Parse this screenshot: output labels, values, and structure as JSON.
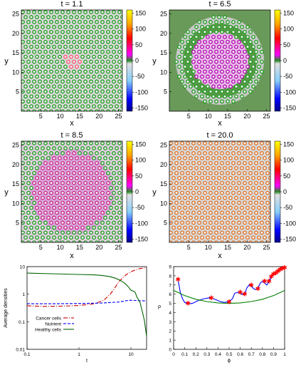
{
  "palette": {
    "colorbar_stops": [
      "#00008b",
      "#0000ff",
      "#87cefa",
      "#e0e0e0",
      "#228b22",
      "#ff00ff",
      "#ff0000",
      "#ffa500",
      "#ffff00"
    ],
    "cancer": "#cc0000",
    "nutrient": "#0000ff",
    "healthy": "#006400",
    "curve_blue": "#0000ff",
    "curve_green": "#008000",
    "marker": "#ff0000"
  },
  "chart_data": [
    {
      "type": "heatmap",
      "title": "t = 1.1",
      "xlabel": "x",
      "ylabel": "y",
      "xticks": [
        "5",
        "10",
        "15",
        "20",
        "25"
      ],
      "yticks": [
        "5",
        "10",
        "15",
        "20",
        "25"
      ],
      "xlim": [
        0,
        26
      ],
      "ylim": [
        0,
        26
      ],
      "colorbar": {
        "ticks": [
          "150",
          "100",
          "50",
          "0",
          "-50",
          "-100",
          "-150"
        ],
        "range": [
          -160,
          160
        ]
      },
      "background": "#d8d8d8",
      "dot_color": "#1a9a1a",
      "dot_center": "#f0f0f0",
      "center_dots": "#ff4d6d",
      "pattern": "rings"
    },
    {
      "type": "heatmap",
      "title": "t = 6.5",
      "xlabel": "x",
      "ylabel": "y",
      "xticks": [
        "5",
        "10",
        "15",
        "20",
        "25"
      ],
      "yticks": [
        "5",
        "10",
        "15",
        "20",
        "25"
      ],
      "xlim": [
        0,
        26
      ],
      "ylim": [
        0,
        26
      ],
      "colorbar": {
        "ticks": [
          "150",
          "100",
          "50",
          "0",
          "-50",
          "-100",
          "-150"
        ],
        "range": [
          -160,
          160
        ]
      },
      "background": "#6a9a5a",
      "dot_color": "#1a9a1a",
      "dot_center": "#f0f0f0",
      "center_dots": "#b000b0",
      "pattern": "disk"
    },
    {
      "type": "heatmap",
      "title": "t = 8.5",
      "xlabel": "x",
      "ylabel": "y",
      "xticks": [
        "5",
        "10",
        "15",
        "20",
        "25"
      ],
      "yticks": [
        "5",
        "10",
        "15",
        "20",
        "25"
      ],
      "xlim": [
        0,
        26
      ],
      "ylim": [
        0,
        26
      ],
      "colorbar": {
        "ticks": [
          "150",
          "100",
          "50",
          "0",
          "-50",
          "-100",
          "-150"
        ],
        "range": [
          -160,
          160
        ]
      },
      "background": "#e0d0e0",
      "dot_color": "#1a9a1a",
      "dot_center": "#f0f0f0",
      "center_dots": "#cc2288",
      "pattern": "spread"
    },
    {
      "type": "heatmap",
      "title": "t = 20.0",
      "xlabel": "x",
      "ylabel": "y",
      "xticks": [
        "5",
        "10",
        "15",
        "20",
        "25"
      ],
      "yticks": [
        "5",
        "10",
        "15",
        "20",
        "25"
      ],
      "xlim": [
        0,
        26
      ],
      "ylim": [
        0,
        26
      ],
      "colorbar": {
        "ticks": [
          "150",
          "100",
          "50",
          "0",
          "-50",
          "-100",
          "-150"
        ],
        "range": [
          -160,
          160
        ]
      },
      "background": "#d8d8d8",
      "dot_color": "#e07020",
      "dot_center": "#f4f4f4",
      "center_dots": "#e07020",
      "pattern": "uniform"
    },
    {
      "type": "line",
      "title": "",
      "xlabel": "t",
      "ylabel": "Average densities",
      "xscale": "log",
      "yscale": "log",
      "xlim": [
        0.1,
        20
      ],
      "ylim": [
        0.01,
        10
      ],
      "xticks": [
        {
          "v": 0.1,
          "label": "0.1"
        },
        {
          "v": 1,
          "label": "1"
        },
        {
          "v": 10,
          "label": "10"
        }
      ],
      "yticks": [
        {
          "v": 0.01,
          "label": "0.01"
        },
        {
          "v": 0.1,
          "label": "0.1"
        },
        {
          "v": 1,
          "label": "1"
        },
        {
          "v": 10,
          "label": "10"
        }
      ],
      "legend": "center-left",
      "series": [
        {
          "name": "Cancer cells",
          "style": "dashdot",
          "color": "#cc0000",
          "x": [
            0.1,
            0.2,
            0.5,
            1,
            2,
            3,
            4,
            5,
            6,
            8,
            10,
            12,
            15,
            20
          ],
          "y": [
            0.38,
            0.36,
            0.37,
            0.39,
            0.45,
            0.6,
            1.0,
            1.8,
            3.0,
            5.0,
            6.5,
            7.5,
            8.5,
            9.2
          ]
        },
        {
          "name": "Nutrient",
          "style": "dashed",
          "color": "#0000ff",
          "x": [
            0.1,
            0.3,
            1,
            2,
            3,
            4,
            5,
            6,
            7,
            8,
            10,
            12,
            15,
            20
          ],
          "y": [
            0.45,
            0.45,
            0.46,
            0.47,
            0.48,
            0.5,
            0.51,
            0.52,
            0.55,
            0.58,
            0.6,
            0.59,
            0.58,
            0.57
          ]
        },
        {
          "name": "Healthy cells",
          "style": "solid",
          "color": "#006400",
          "x": [
            0.1,
            0.3,
            1,
            2,
            3,
            4,
            5,
            6,
            7,
            8,
            9,
            10,
            11,
            12,
            13,
            15,
            18,
            20
          ],
          "y": [
            5.8,
            5.5,
            5.2,
            5.0,
            4.7,
            4.3,
            3.8,
            3.3,
            2.8,
            2.3,
            1.8,
            1.4,
            1.3,
            1.2,
            0.8,
            0.5,
            0.12,
            0.03
          ]
        }
      ]
    },
    {
      "type": "line",
      "title": "",
      "xlabel": "ϕ",
      "ylabel": "ρ",
      "xlim": [
        0,
        1
      ],
      "ylim": [
        0,
        9
      ],
      "xticks": [
        {
          "v": 0,
          "label": "0"
        },
        {
          "v": 0.1,
          "label": "0.1"
        },
        {
          "v": 0.2,
          "label": "0.2"
        },
        {
          "v": 0.3,
          "label": "0.3"
        },
        {
          "v": 0.4,
          "label": "0.4"
        },
        {
          "v": 0.5,
          "label": "0.5"
        },
        {
          "v": 0.6,
          "label": "0.6"
        },
        {
          "v": 0.7,
          "label": "0.7"
        },
        {
          "v": 0.8,
          "label": "0.8"
        },
        {
          "v": 0.9,
          "label": "0.9"
        },
        {
          "v": 1,
          "label": "1"
        }
      ],
      "yticks": [
        {
          "v": 0,
          "label": "0"
        },
        {
          "v": 1,
          "label": "1"
        },
        {
          "v": 2,
          "label": "2"
        },
        {
          "v": 3,
          "label": "3"
        },
        {
          "v": 4,
          "label": "4"
        },
        {
          "v": 5,
          "label": "5"
        },
        {
          "v": 6,
          "label": "6"
        },
        {
          "v": 7,
          "label": "7"
        },
        {
          "v": 8,
          "label": "8"
        },
        {
          "v": 9,
          "label": "9"
        }
      ],
      "series": [
        {
          "style": "solid",
          "color": "#0000ff",
          "x": [
            0.04,
            0.06,
            0.08,
            0.1,
            0.13,
            0.17,
            0.22,
            0.27,
            0.32,
            0.35,
            0.38,
            0.42,
            0.46,
            0.5,
            0.53,
            0.55,
            0.58,
            0.61,
            0.64,
            0.66,
            0.68,
            0.7,
            0.72,
            0.74,
            0.76,
            0.78,
            0.8,
            0.82,
            0.84,
            0.86,
            0.88,
            0.9,
            0.92,
            0.94,
            0.96,
            0.98,
            1.0
          ],
          "y": [
            7.6,
            6.2,
            5.5,
            5.1,
            4.95,
            5.0,
            5.3,
            5.5,
            5.6,
            5.55,
            5.4,
            5.2,
            5.1,
            5.2,
            5.5,
            6.1,
            6.2,
            6.0,
            6.0,
            6.7,
            7.0,
            6.9,
            6.6,
            6.5,
            6.7,
            7.2,
            7.4,
            7.2,
            7.0,
            7.4,
            7.9,
            8.2,
            8.3,
            8.5,
            8.7,
            8.8,
            8.9
          ]
        },
        {
          "style": "solid",
          "color": "#008000",
          "x": [
            0,
            0.1,
            0.2,
            0.3,
            0.4,
            0.5,
            0.6,
            0.7,
            0.8,
            0.9,
            1.0
          ],
          "y": [
            6.4,
            5.85,
            5.45,
            5.2,
            5.05,
            5.0,
            5.05,
            5.2,
            5.45,
            5.85,
            6.4
          ]
        },
        {
          "style": "markers",
          "marker": "star",
          "color": "#ff0000",
          "x": [
            0.04,
            0.13,
            0.34,
            0.5,
            0.6,
            0.64,
            0.7,
            0.76,
            0.82,
            0.86,
            0.88,
            0.9,
            0.92,
            0.94,
            0.96,
            0.98,
            1.0
          ],
          "y": [
            7.6,
            5.0,
            5.6,
            5.15,
            6.2,
            6.0,
            7.0,
            6.6,
            7.4,
            7.4,
            7.9,
            8.2,
            8.3,
            8.5,
            8.7,
            8.8,
            8.9
          ]
        }
      ]
    }
  ]
}
